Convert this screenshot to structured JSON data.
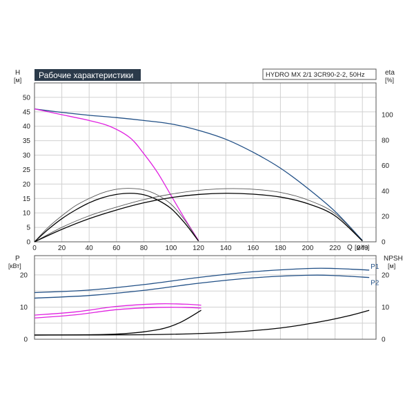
{
  "chart_data": [
    {
      "id": "performance",
      "type": "line",
      "title": "Рабочие характеристики",
      "model_label": "HYDRO MX 2/1 3CR90-2-2, 50Hz",
      "ylabel": "H",
      "ylabel_unit": "[м]",
      "y2label": "eta",
      "y2label_unit": "[%]",
      "xlabel": "Q",
      "xlabel_unit": "[м³/ч]",
      "xlim": [
        0,
        250
      ],
      "ylim": [
        0,
        55
      ],
      "y2lim": [
        0,
        125
      ],
      "x_ticks": [
        0,
        20,
        40,
        60,
        80,
        100,
        120,
        140,
        160,
        180,
        200,
        220,
        240
      ],
      "y_ticks": [
        0,
        5,
        10,
        15,
        20,
        25,
        30,
        35,
        40,
        45,
        50
      ],
      "y2_ticks": [
        0,
        20,
        40,
        60,
        80,
        100
      ],
      "grid": true,
      "series": [
        {
          "color": "#1f4e85",
          "axis": "left",
          "points": [
            [
              0,
              46
            ],
            [
              20,
              44.8
            ],
            [
              40,
              43.8
            ],
            [
              60,
              43
            ],
            [
              80,
              42
            ],
            [
              100,
              40.8
            ],
            [
              120,
              38.6
            ],
            [
              140,
              35.5
            ],
            [
              160,
              31
            ],
            [
              180,
              25.5
            ],
            [
              200,
              18.5
            ],
            [
              220,
              10.5
            ],
            [
              240,
              0.5
            ]
          ]
        },
        {
          "color": "#e020e0",
          "axis": "left",
          "points": [
            [
              0,
              46
            ],
            [
              20,
              44
            ],
            [
              40,
              42
            ],
            [
              55,
              40
            ],
            [
              70,
              36
            ],
            [
              80,
              30.5
            ],
            [
              90,
              24
            ],
            [
              100,
              16
            ],
            [
              110,
              8
            ],
            [
              120,
              0.5
            ]
          ]
        },
        {
          "color": "#555555",
          "axis": "left",
          "points": [
            [
              0,
              0
            ],
            [
              10,
              5
            ],
            [
              20,
              9
            ],
            [
              30,
              12.5
            ],
            [
              40,
              15
            ],
            [
              50,
              17
            ],
            [
              60,
              18.2
            ],
            [
              70,
              18.5
            ],
            [
              80,
              18
            ],
            [
              90,
              16.2
            ],
            [
              100,
              13
            ],
            [
              110,
              7.5
            ],
            [
              120,
              0.3
            ]
          ]
        },
        {
          "color": "#000000",
          "axis": "left",
          "points": [
            [
              0,
              0
            ],
            [
              10,
              4.3
            ],
            [
              20,
              8
            ],
            [
              30,
              11
            ],
            [
              40,
              13.5
            ],
            [
              50,
              15.3
            ],
            [
              60,
              16.4
            ],
            [
              70,
              16.8
            ],
            [
              80,
              16.3
            ],
            [
              90,
              14.5
            ],
            [
              100,
              11.5
            ],
            [
              110,
              6.5
            ],
            [
              120,
              0.3
            ]
          ]
        },
        {
          "color": "#555555",
          "axis": "left",
          "points": [
            [
              0,
              0
            ],
            [
              20,
              5
            ],
            [
              40,
              9
            ],
            [
              60,
              12
            ],
            [
              80,
              14.6
            ],
            [
              100,
              16.5
            ],
            [
              120,
              17.8
            ],
            [
              140,
              18.4
            ],
            [
              160,
              18.2
            ],
            [
              180,
              17.1
            ],
            [
              200,
              14.5
            ],
            [
              220,
              9.8
            ],
            [
              240,
              0.3
            ]
          ]
        },
        {
          "color": "#000000",
          "axis": "left",
          "points": [
            [
              0,
              0
            ],
            [
              20,
              4.3
            ],
            [
              40,
              8
            ],
            [
              60,
              11
            ],
            [
              80,
              13.5
            ],
            [
              100,
              15.3
            ],
            [
              120,
              16.4
            ],
            [
              140,
              16.8
            ],
            [
              160,
              16.5
            ],
            [
              180,
              15.5
            ],
            [
              200,
              13.2
            ],
            [
              220,
              9
            ],
            [
              240,
              0.3
            ]
          ]
        }
      ]
    },
    {
      "id": "power-npsh",
      "type": "line",
      "ylabel": "P",
      "ylabel_unit": "[кВт]",
      "y2label": "NPSH",
      "y2label_unit": "[м]",
      "xlim": [
        0,
        250
      ],
      "ylim": [
        0,
        26
      ],
      "y2lim": [
        0,
        26
      ],
      "y_ticks": [
        0,
        10,
        20
      ],
      "y2_ticks": [
        0,
        10,
        20
      ],
      "grid": true,
      "series": [
        {
          "name": "P1",
          "color": "#1f4e85",
          "axis": "left",
          "points": [
            [
              0,
              14.5
            ],
            [
              40,
              15.3
            ],
            [
              80,
              17
            ],
            [
              120,
              19.2
            ],
            [
              160,
              21
            ],
            [
              200,
              22
            ],
            [
              220,
              22
            ],
            [
              245,
              21.5
            ]
          ]
        },
        {
          "name": "P2",
          "color": "#1f4e85",
          "axis": "left",
          "points": [
            [
              0,
              12.8
            ],
            [
              40,
              13.6
            ],
            [
              80,
              15.2
            ],
            [
              120,
              17.4
            ],
            [
              160,
              19.1
            ],
            [
              200,
              19.9
            ],
            [
              220,
              19.8
            ],
            [
              245,
              19.2
            ]
          ]
        },
        {
          "color": "#e020e0",
          "axis": "left",
          "points": [
            [
              0,
              7.5
            ],
            [
              30,
              8.5
            ],
            [
              60,
              10.2
            ],
            [
              90,
              11
            ],
            [
              110,
              10.9
            ],
            [
              122,
              10.6
            ]
          ]
        },
        {
          "color": "#e020e0",
          "axis": "left",
          "points": [
            [
              0,
              6.6
            ],
            [
              30,
              7.6
            ],
            [
              60,
              9.2
            ],
            [
              90,
              9.9
            ],
            [
              110,
              9.9
            ],
            [
              122,
              9.7
            ]
          ]
        },
        {
          "color": "#000000",
          "axis": "right",
          "points": [
            [
              0,
              1.3
            ],
            [
              40,
              1.4
            ],
            [
              60,
              1.6
            ],
            [
              80,
              2.3
            ],
            [
              95,
              3.4
            ],
            [
              108,
              5.5
            ],
            [
              122,
              9
            ]
          ]
        },
        {
          "color": "#000000",
          "axis": "right",
          "points": [
            [
              0,
              1.3
            ],
            [
              80,
              1.4
            ],
            [
              140,
              2.1
            ],
            [
              180,
              3.5
            ],
            [
              210,
              5.5
            ],
            [
              230,
              7.3
            ],
            [
              245,
              9
            ]
          ]
        }
      ]
    }
  ]
}
